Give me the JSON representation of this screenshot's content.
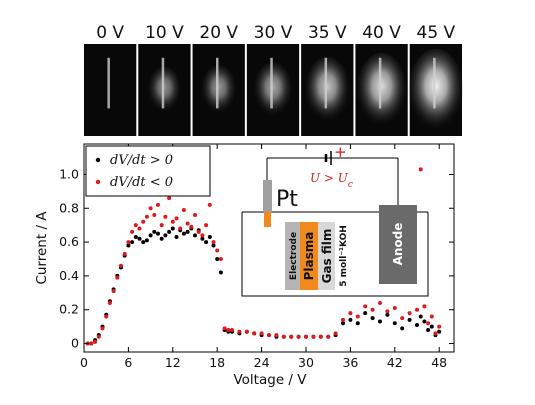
{
  "photo_strip": {
    "labels": [
      "0 V",
      "10 V",
      "20 V",
      "30 V",
      "35 V",
      "40 V",
      "45 V"
    ],
    "glow": [
      0.02,
      0.35,
      0.4,
      0.5,
      0.7,
      0.85,
      1.0
    ]
  },
  "inset": {
    "electrode_name": "Pt",
    "layer_electrode": "Electrode",
    "layer_plasma": "Plasma",
    "layer_gasfilm": "Gas film",
    "layer_electrolyte": "5 moll⁻¹KOH",
    "anode_label": "Anode",
    "condition": "U > U",
    "condition_sub": "c",
    "plus_sign": "+",
    "colors": {
      "plasma": "#f08a1c",
      "electrode": "#999999",
      "anode": "#6a6a6a",
      "wire_red": "#d21c1c"
    }
  },
  "chart_data": {
    "type": "scatter",
    "xlabel": "Voltage / V",
    "ylabel": "Current / A",
    "xlim": [
      0,
      50
    ],
    "ylim": [
      -0.05,
      1.18
    ],
    "xticks": [
      0,
      6,
      12,
      18,
      24,
      30,
      36,
      42,
      48
    ],
    "yticks": [
      0,
      0.2,
      0.4,
      0.6,
      0.8,
      1.0
    ],
    "xtick_labels": [
      "0",
      "6",
      "12",
      "18",
      "24",
      "30",
      "36",
      "42",
      "48"
    ],
    "ytick_labels": [
      "0",
      "0.2",
      "0.4",
      "0.6",
      "0.8",
      "1.0"
    ],
    "legend_position": "top-left",
    "series": [
      {
        "name": "dV/dt > 0",
        "color": "#000000",
        "x": [
          0.5,
          1.0,
          1.5,
          2.0,
          2.5,
          3.0,
          3.5,
          4.0,
          4.5,
          5.0,
          5.5,
          6.0,
          6.5,
          7.0,
          7.5,
          8.0,
          8.5,
          9.0,
          9.5,
          10.0,
          10.5,
          11.0,
          11.5,
          12.0,
          12.5,
          13.0,
          13.5,
          14.0,
          14.5,
          15.0,
          15.5,
          16.0,
          16.5,
          17.0,
          17.5,
          18.0,
          18.5,
          19.0,
          19.5,
          20.0,
          21.0,
          22.0,
          23.0,
          24.0,
          25.0,
          26.0,
          27.0,
          28.0,
          29.0,
          30.0,
          31.0,
          32.0,
          33.0,
          34.0,
          35.0,
          36.0,
          37.0,
          38.0,
          39.0,
          40.0,
          41.0,
          42.0,
          43.0,
          44.0,
          45.0,
          45.5,
          46.0,
          46.5,
          47.0,
          47.5,
          48.0
        ],
        "y": [
          0.0,
          0.0,
          0.02,
          0.05,
          0.1,
          0.17,
          0.25,
          0.32,
          0.4,
          0.45,
          0.52,
          0.58,
          0.6,
          0.63,
          0.62,
          0.6,
          0.61,
          0.64,
          0.66,
          0.65,
          0.62,
          0.64,
          0.66,
          0.68,
          0.63,
          0.67,
          0.65,
          0.66,
          0.68,
          0.64,
          0.67,
          0.62,
          0.6,
          0.63,
          0.58,
          0.5,
          0.42,
          0.08,
          0.07,
          0.07,
          0.06,
          0.07,
          0.06,
          0.05,
          0.05,
          0.04,
          0.04,
          0.04,
          0.04,
          0.04,
          0.04,
          0.04,
          0.04,
          0.05,
          0.12,
          0.14,
          0.12,
          0.18,
          0.15,
          0.13,
          0.17,
          0.12,
          0.09,
          0.14,
          0.11,
          0.16,
          0.13,
          0.08,
          0.1,
          0.05,
          0.07
        ]
      },
      {
        "name": "dV/dt < 0",
        "color": "#e0191c",
        "x": [
          0.5,
          1.0,
          1.5,
          2.0,
          2.5,
          3.0,
          3.5,
          4.0,
          4.5,
          5.0,
          5.5,
          6.0,
          6.5,
          7.0,
          7.5,
          8.0,
          8.5,
          9.0,
          9.5,
          10.0,
          10.5,
          11.0,
          11.5,
          12.0,
          12.5,
          13.0,
          13.5,
          14.0,
          14.5,
          15.0,
          15.5,
          16.0,
          16.5,
          17.0,
          17.5,
          18.0,
          18.5,
          19.0,
          19.5,
          20.0,
          21.0,
          22.0,
          23.0,
          24.0,
          25.0,
          26.0,
          27.0,
          28.0,
          29.0,
          30.0,
          31.0,
          32.0,
          33.0,
          34.0,
          35.0,
          36.0,
          37.0,
          38.0,
          39.0,
          40.0,
          41.0,
          42.0,
          43.0,
          44.0,
          45.0,
          45.5,
          46.0,
          46.5,
          47.0,
          47.5,
          48.0
        ],
        "y": [
          0.0,
          0.0,
          0.01,
          0.04,
          0.09,
          0.16,
          0.24,
          0.31,
          0.39,
          0.46,
          0.53,
          0.6,
          0.66,
          0.7,
          0.68,
          0.72,
          0.75,
          0.8,
          0.76,
          0.82,
          0.7,
          0.75,
          0.86,
          0.72,
          0.74,
          0.68,
          0.79,
          0.71,
          0.69,
          0.76,
          0.66,
          0.64,
          0.7,
          0.82,
          0.6,
          0.55,
          0.5,
          0.09,
          0.08,
          0.08,
          0.07,
          0.07,
          0.06,
          0.06,
          0.05,
          0.05,
          0.04,
          0.04,
          0.04,
          0.04,
          0.04,
          0.04,
          0.04,
          0.06,
          0.14,
          0.18,
          0.16,
          0.22,
          0.2,
          0.24,
          0.19,
          0.21,
          0.15,
          0.18,
          0.2,
          1.03,
          0.22,
          0.12,
          0.16,
          0.06,
          0.1
        ]
      }
    ]
  }
}
